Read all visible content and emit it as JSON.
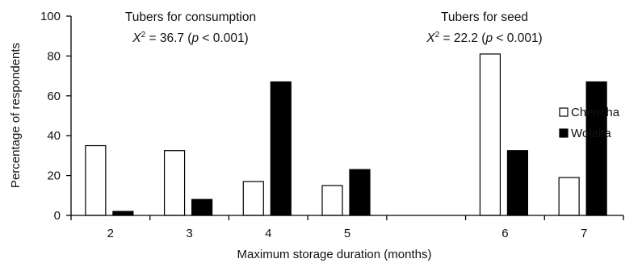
{
  "chart_data": {
    "type": "bar",
    "categories": [
      "2",
      "3",
      "4",
      "5",
      "",
      "6",
      "7"
    ],
    "series": [
      {
        "name": "Chencha",
        "values": [
          35,
          32.5,
          17,
          15,
          null,
          81,
          19
        ],
        "color": "#ffffff"
      },
      {
        "name": "Wolaita",
        "values": [
          2,
          8,
          67,
          23,
          null,
          32.5,
          67
        ],
        "color": "#000000"
      }
    ],
    "xlabel": "Maximum storage duration (months)",
    "ylabel": "Percentage of respondents",
    "ylim": [
      0,
      100
    ],
    "yticks": [
      "0",
      "20",
      "40",
      "60",
      "80",
      "100"
    ],
    "legend_position": "right",
    "grid": false,
    "annotations": [
      {
        "title": "Tubers for consumption",
        "stat_symbol": "X",
        "stat_sup": "2",
        "stat_text": " = 36.7 (",
        "p_symbol": "p",
        "p_text": " < 0.001)"
      },
      {
        "title": "Tubers for seed",
        "stat_symbol": "X",
        "stat_sup": "2",
        "stat_text": " = 22.2 (",
        "p_symbol": "p",
        "p_text": " < 0.001)"
      }
    ]
  }
}
